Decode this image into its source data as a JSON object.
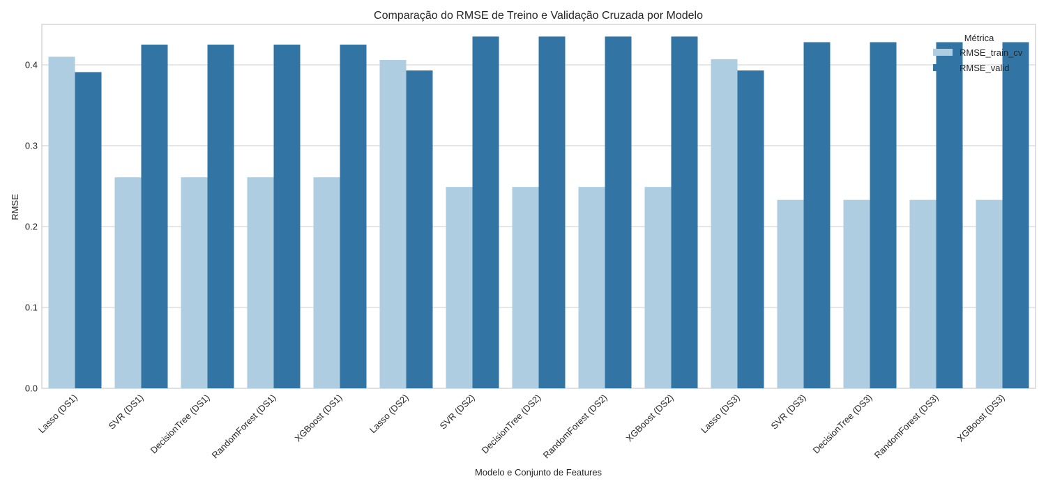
{
  "chart_data": {
    "type": "bar",
    "title": "Comparação do RMSE de Treino e Validação Cruzada por Modelo",
    "xlabel": "Modelo e Conjunto de Features",
    "ylabel": "RMSE",
    "ylim": [
      0,
      0.45
    ],
    "yticks": [
      "0.0",
      "0.1",
      "0.2",
      "0.3",
      "0.4"
    ],
    "grid": true,
    "legend": {
      "title": "Métrica",
      "position": "top-right"
    },
    "categories": [
      "Lasso (DS1)",
      "SVR (DS1)",
      "DecisionTree (DS1)",
      "RandomForest (DS1)",
      "XGBoost (DS1)",
      "Lasso (DS2)",
      "SVR (DS2)",
      "DecisionTree (DS2)",
      "RandomForest (DS2)",
      "XGBoost (DS2)",
      "Lasso (DS3)",
      "SVR (DS3)",
      "DecisionTree (DS3)",
      "RandomForest (DS3)",
      "XGBoost (DS3)"
    ],
    "series": [
      {
        "name": "RMSE_train_cv",
        "color": "#aecde1",
        "values": [
          0.41,
          0.261,
          0.261,
          0.261,
          0.261,
          0.406,
          0.249,
          0.249,
          0.249,
          0.249,
          0.407,
          0.233,
          0.233,
          0.233,
          0.233
        ]
      },
      {
        "name": "RMSE_valid",
        "color": "#3274a4",
        "values": [
          0.391,
          0.425,
          0.425,
          0.425,
          0.425,
          0.393,
          0.435,
          0.435,
          0.435,
          0.435,
          0.393,
          0.428,
          0.428,
          0.428,
          0.428
        ]
      }
    ]
  }
}
